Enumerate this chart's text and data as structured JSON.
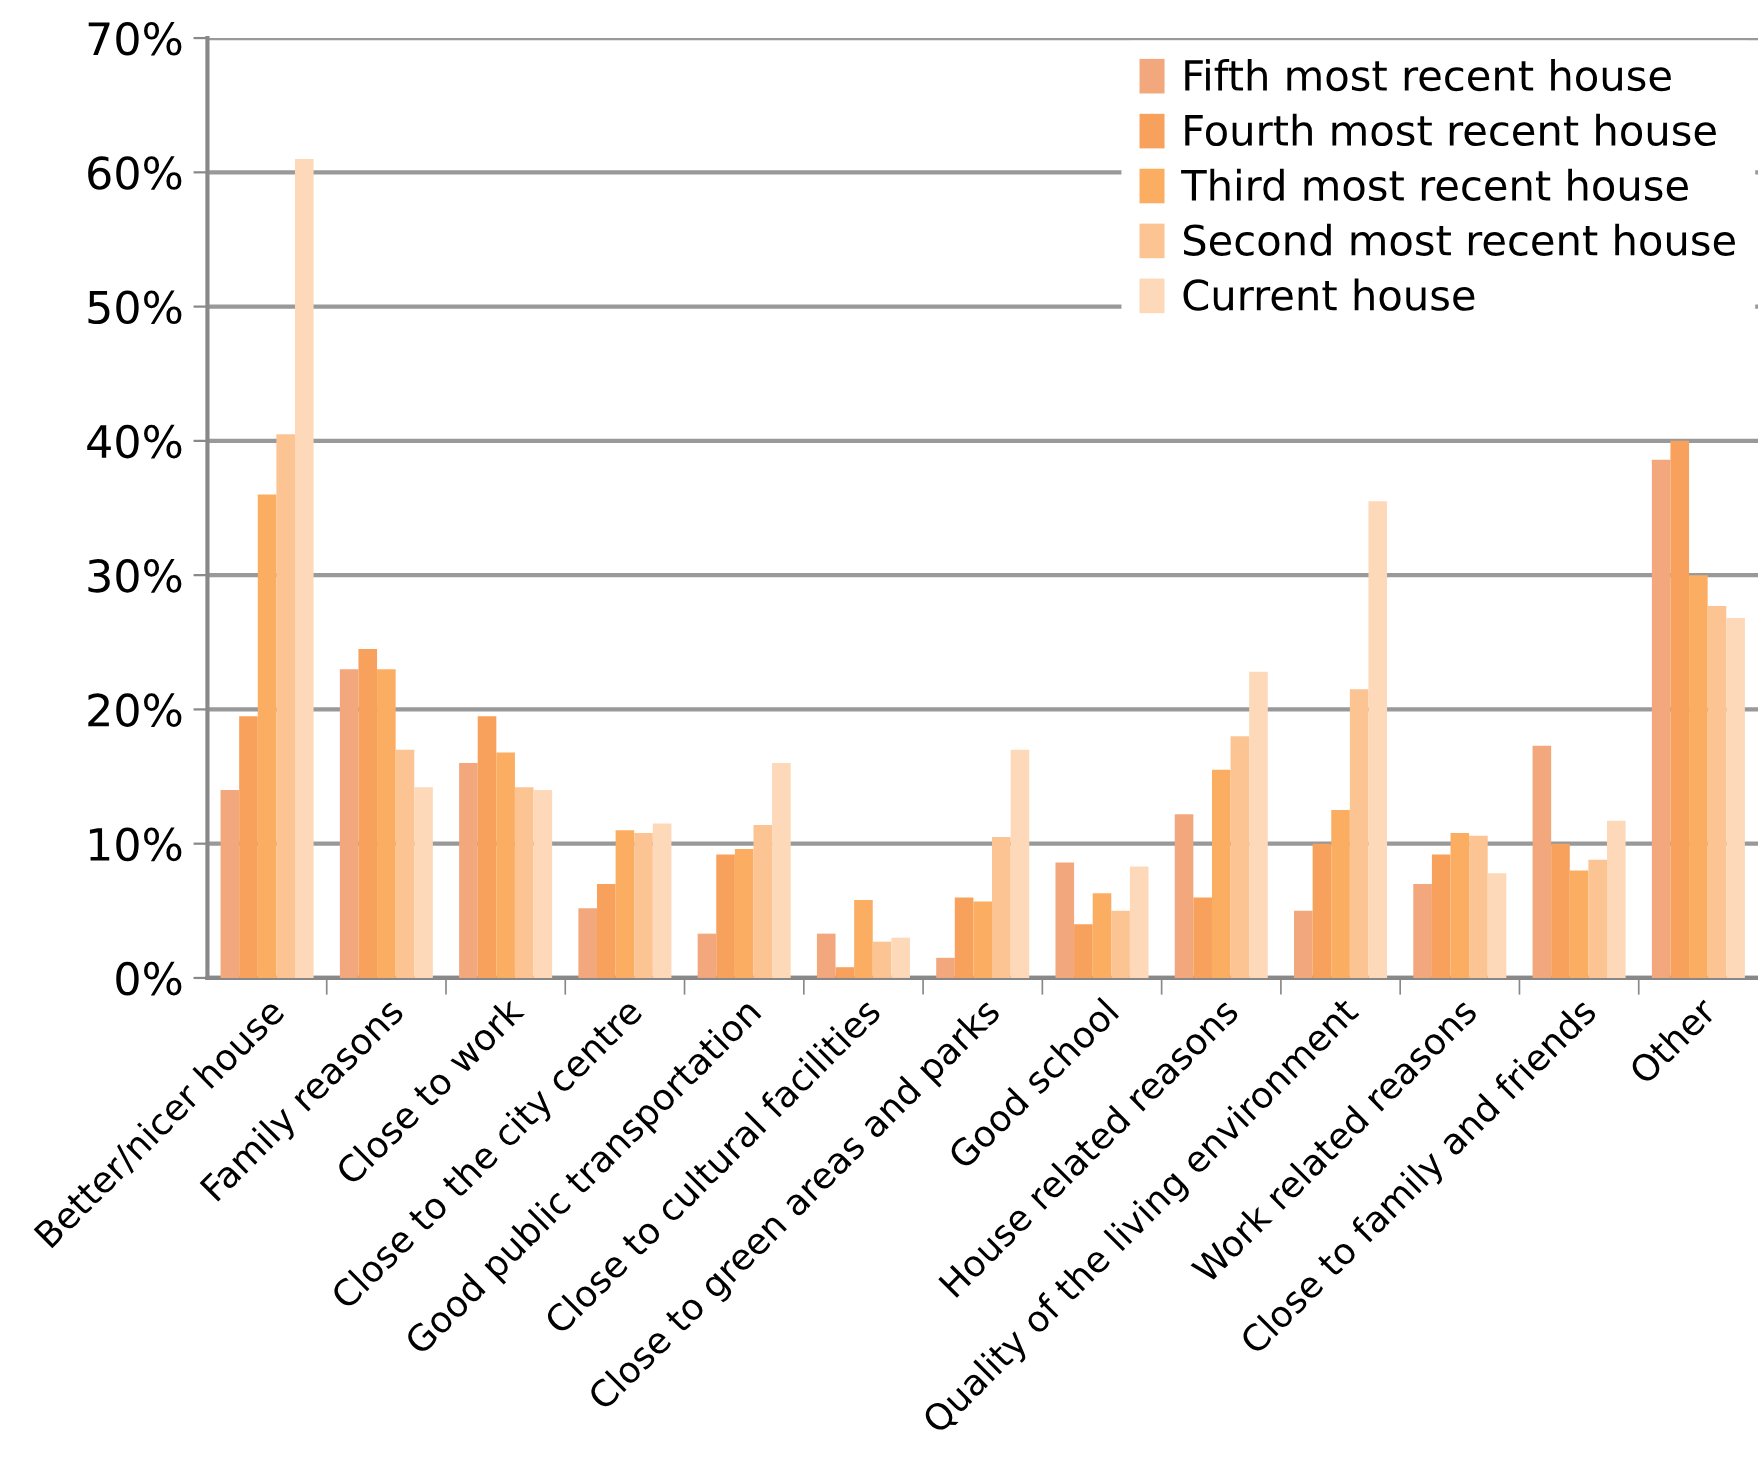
{
  "chart_data": {
    "type": "bar",
    "categories": [
      "Better/nicer house",
      "Family reasons",
      "Close to work",
      "Close to the city centre",
      "Good public transportation",
      "Close to cultural facilities",
      "Close to green areas and parks",
      "Good school",
      "House related reasons",
      "Quality of the living environment",
      "Work related reasons",
      "Close to family and friends",
      "Other"
    ],
    "series": [
      {
        "name": "Fifth most recent house",
        "color": "#f2a77c",
        "values": [
          14,
          23,
          16,
          5.2,
          3.3,
          3.3,
          1.5,
          8.6,
          12.2,
          5,
          7,
          17.3,
          38.6
        ]
      },
      {
        "name": "Fourth most recent house",
        "color": "#f7a15c",
        "values": [
          19.5,
          24.5,
          19.5,
          7,
          9.2,
          0.8,
          6,
          4,
          6,
          10,
          9.2,
          10,
          40
        ]
      },
      {
        "name": "Third most recent house",
        "color": "#fbae62",
        "values": [
          36,
          23,
          16.8,
          11,
          9.6,
          5.8,
          5.7,
          6.3,
          15.5,
          12.5,
          10.8,
          8,
          30
        ]
      },
      {
        "name": "Second most recent house",
        "color": "#fcc393",
        "values": [
          40.5,
          17,
          14.2,
          10.8,
          11.4,
          2.7,
          10.5,
          5,
          18,
          21.5,
          10.6,
          8.8,
          27.7
        ]
      },
      {
        "name": "Current house",
        "color": "#fdd9b9",
        "values": [
          61,
          14.2,
          14,
          11.5,
          16,
          3,
          17,
          8.3,
          22.8,
          35.5,
          7.8,
          11.7,
          26.8
        ]
      }
    ],
    "ylim": [
      0,
      70
    ],
    "yticks": [
      {
        "value": 0,
        "label": "0%"
      },
      {
        "value": 10,
        "label": "10%"
      },
      {
        "value": 20,
        "label": "20%"
      },
      {
        "value": 30,
        "label": "30%"
      },
      {
        "value": 40,
        "label": "40%"
      },
      {
        "value": 50,
        "label": "50%"
      },
      {
        "value": 60,
        "label": "60%"
      },
      {
        "value": 70,
        "label": "70%"
      }
    ],
    "grid": "y",
    "legend": "top right"
  }
}
